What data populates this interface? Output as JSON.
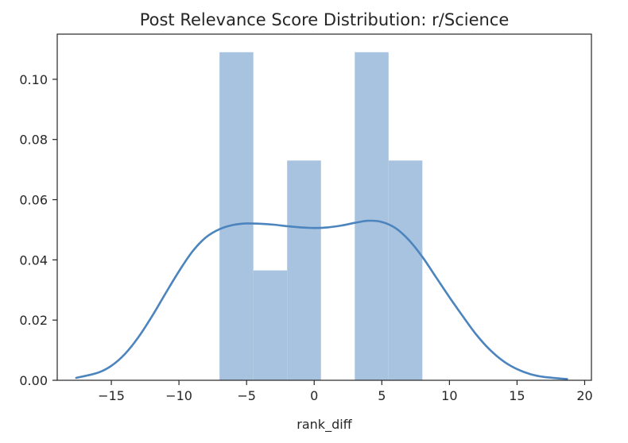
{
  "chart_data": {
    "type": "bar",
    "title": "Post Relevance Score Distribution: r/Science",
    "xlabel": "rank_diff",
    "ylabel": "",
    "xlim": [
      -19.0,
      20.5
    ],
    "ylim": [
      0.0,
      0.115
    ],
    "xticks": [
      -15,
      -10,
      -5,
      0,
      5,
      10,
      15,
      20
    ],
    "xtick_labels": [
      "−15",
      "−10",
      "−5",
      "0",
      "5",
      "10",
      "15",
      "20"
    ],
    "yticks": [
      0.0,
      0.02,
      0.04,
      0.06,
      0.08,
      0.1
    ],
    "ytick_labels": [
      "0.00",
      "0.02",
      "0.04",
      "0.06",
      "0.08",
      "0.10"
    ],
    "grid": false,
    "histogram": {
      "bins": [
        {
          "x0": -7.0,
          "x1": -4.5,
          "value": 0.109
        },
        {
          "x0": -4.5,
          "x1": -2.0,
          "value": 0.0365
        },
        {
          "x0": -2.0,
          "x1": 0.5,
          "value": 0.073
        },
        {
          "x0": 0.5,
          "x1": 3.0,
          "value": 0.0
        },
        {
          "x0": 3.0,
          "x1": 5.5,
          "value": 0.109
        },
        {
          "x0": 5.5,
          "x1": 8.0,
          "value": 0.073
        }
      ],
      "color": "#a8c3df"
    },
    "kde": {
      "color": "#4c84be",
      "x": [
        -17.6,
        -16,
        -15,
        -14,
        -13,
        -12,
        -11,
        -10,
        -9,
        -8,
        -7,
        -6,
        -5,
        -4,
        -3,
        -2,
        -1,
        0,
        1,
        2,
        3,
        4,
        5,
        6,
        7,
        8,
        9,
        10,
        11,
        12,
        13,
        14,
        15,
        16,
        17,
        18.7
      ],
      "y": [
        0.0008,
        0.0025,
        0.0048,
        0.0087,
        0.0143,
        0.0212,
        0.0288,
        0.0362,
        0.0428,
        0.0475,
        0.0502,
        0.0516,
        0.0521,
        0.052,
        0.0517,
        0.0512,
        0.0508,
        0.0506,
        0.0508,
        0.0514,
        0.0523,
        0.053,
        0.0526,
        0.0506,
        0.0466,
        0.041,
        0.0343,
        0.0276,
        0.0212,
        0.0151,
        0.0101,
        0.0063,
        0.0037,
        0.002,
        0.0011,
        0.0004
      ]
    }
  }
}
